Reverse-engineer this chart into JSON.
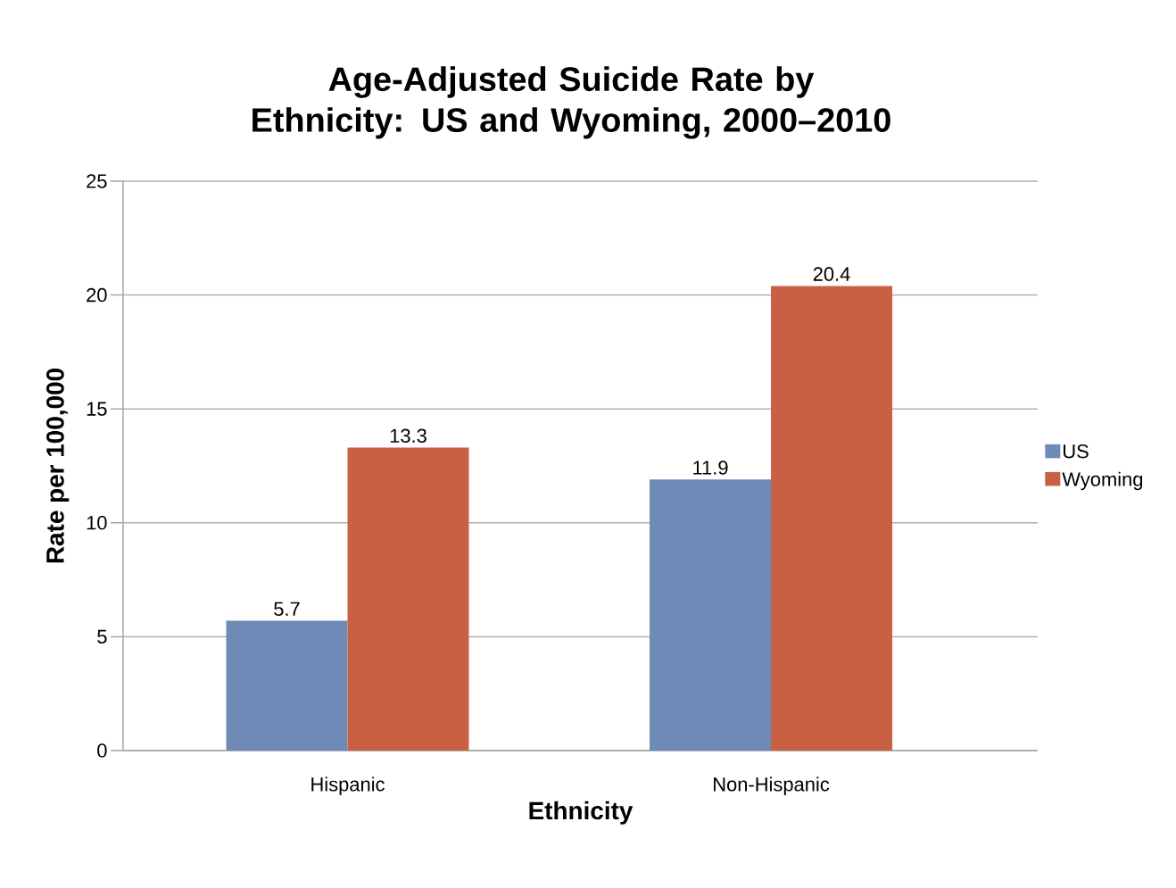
{
  "chart_data": {
    "type": "bar",
    "title": "Age-Adjusted Suicide Rate by Ethnicity: US and Wyoming, 2000–2010",
    "xlabel": "Ethnicity",
    "ylabel": "Rate per 100,000",
    "categories": [
      "Hispanic",
      "Non-Hispanic"
    ],
    "series": [
      {
        "name": "US",
        "color": "#6f8ab7",
        "values": [
          5.7,
          11.9
        ]
      },
      {
        "name": "Wyoming",
        "color": "#c86144",
        "values": [
          13.3,
          20.4
        ]
      }
    ],
    "ylim": [
      0,
      25
    ],
    "yticks": [
      0,
      5,
      10,
      15,
      20,
      25
    ],
    "grid": "y",
    "legend": "right",
    "data_labels": true
  }
}
